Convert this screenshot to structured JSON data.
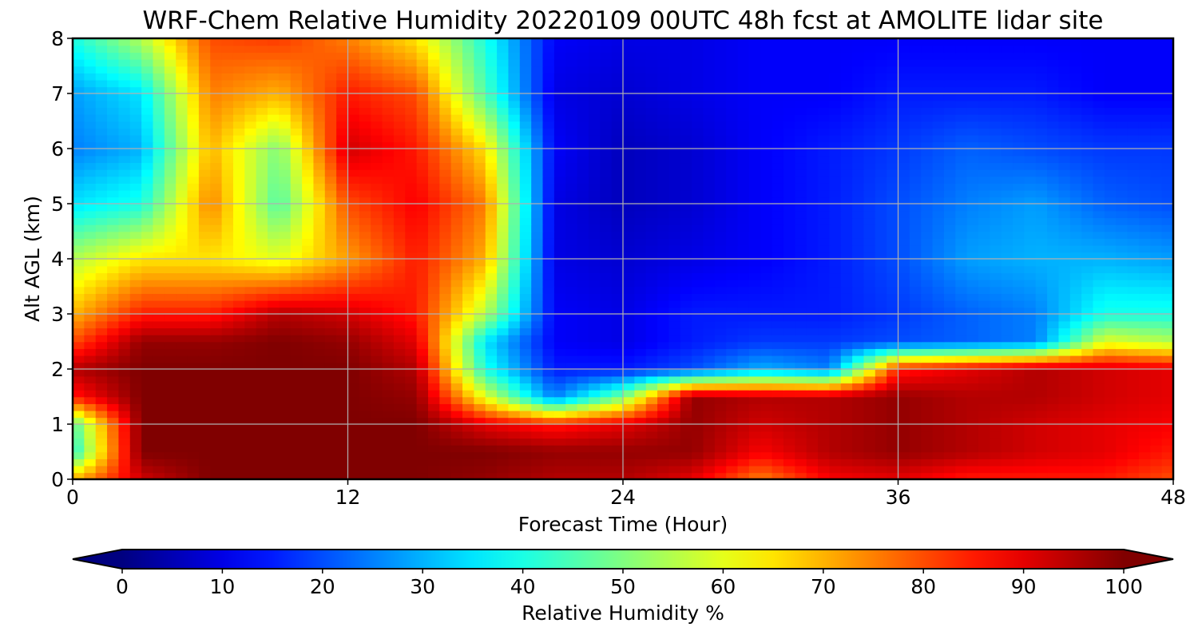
{
  "chart_data": {
    "type": "heatmap",
    "title": "WRF-Chem Relative Humidity 20220109 00UTC 48h fcst at AMOLITE lidar site",
    "xlabel": "Forecast Time (Hour)",
    "ylabel": "Alt AGL (km)",
    "xlim": [
      0,
      48
    ],
    "ylim": [
      0,
      8
    ],
    "x_ticks": [
      "0",
      "12",
      "24",
      "36",
      "48"
    ],
    "y_ticks": [
      "0",
      "1",
      "2",
      "3",
      "4",
      "5",
      "6",
      "7",
      "8"
    ],
    "grid": true,
    "x": [
      0,
      3,
      6,
      9,
      12,
      15,
      18,
      21,
      24,
      27,
      30,
      33,
      36,
      39,
      42,
      45,
      48
    ],
    "y": [
      0,
      0.5,
      1,
      1.5,
      2,
      2.5,
      3,
      4,
      5,
      6,
      7,
      8
    ],
    "z": [
      [
        70,
        92,
        100,
        100,
        100,
        100,
        98,
        95,
        95,
        90,
        75,
        88,
        90,
        85,
        85,
        85,
        80
      ],
      [
        40,
        100,
        100,
        100,
        100,
        100,
        100,
        98,
        98,
        98,
        88,
        95,
        98,
        95,
        92,
        90,
        85
      ],
      [
        45,
        100,
        100,
        100,
        100,
        100,
        90,
        85,
        90,
        98,
        92,
        95,
        98,
        95,
        92,
        90,
        88
      ],
      [
        85,
        100,
        100,
        100,
        100,
        98,
        60,
        25,
        50,
        98,
        95,
        95,
        98,
        95,
        95,
        92,
        90
      ],
      [
        95,
        100,
        100,
        100,
        100,
        95,
        40,
        15,
        15,
        20,
        30,
        25,
        85,
        90,
        95,
        92,
        90
      ],
      [
        80,
        98,
        98,
        100,
        98,
        90,
        35,
        12,
        10,
        15,
        18,
        18,
        20,
        22,
        25,
        60,
        55
      ],
      [
        70,
        85,
        85,
        95,
        92,
        85,
        55,
        12,
        10,
        15,
        15,
        15,
        18,
        22,
        25,
        40,
        40
      ],
      [
        55,
        65,
        65,
        60,
        72,
        85,
        70,
        10,
        8,
        10,
        12,
        15,
        20,
        28,
        30,
        30,
        28
      ],
      [
        35,
        40,
        75,
        45,
        80,
        88,
        75,
        10,
        6,
        8,
        12,
        15,
        20,
        25,
        28,
        22,
        20
      ],
      [
        25,
        30,
        70,
        50,
        92,
        85,
        65,
        12,
        6,
        8,
        12,
        15,
        18,
        22,
        20,
        18,
        18
      ],
      [
        28,
        35,
        75,
        70,
        85,
        80,
        45,
        10,
        8,
        10,
        12,
        12,
        15,
        15,
        15,
        12,
        12
      ],
      [
        40,
        55,
        80,
        82,
        75,
        65,
        40,
        12,
        10,
        10,
        12,
        12,
        12,
        12,
        12,
        12,
        12
      ]
    ],
    "colorbar": {
      "label": "Relative Humidity %",
      "min": 0,
      "max": 100,
      "ticks": [
        "0",
        "10",
        "20",
        "30",
        "40",
        "50",
        "60",
        "70",
        "80",
        "90",
        "100"
      ],
      "extend": "both"
    }
  }
}
